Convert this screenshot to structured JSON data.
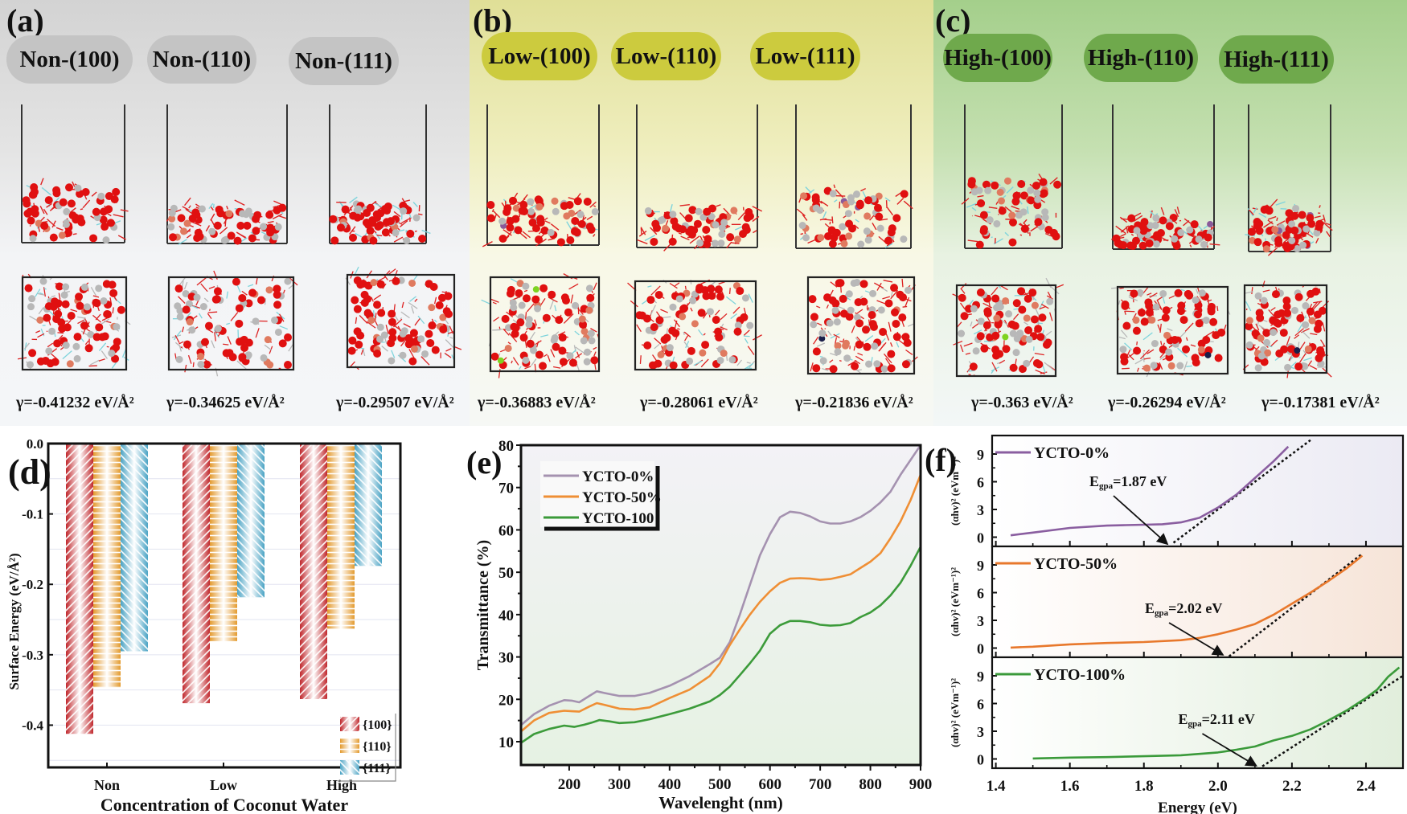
{
  "top_panels": [
    {
      "letter": "(a)",
      "group": "non",
      "facets": [
        {
          "label": "Non-(100)",
          "gamma": "γ=-0.41232 eV/Å²"
        },
        {
          "label": "Non-(110)",
          "gamma": "γ=-0.34625 eV/Å²"
        },
        {
          "label": "Non-(111)",
          "gamma": "γ=-0.29507 eV/Å²"
        }
      ]
    },
    {
      "letter": "(b)",
      "group": "low",
      "facets": [
        {
          "label": "Low-(100)",
          "gamma": "γ=-0.36883 eV/Å²"
        },
        {
          "label": "Low-(110)",
          "gamma": "γ=-0.28061 eV/Å²"
        },
        {
          "label": "Low-(111)",
          "gamma": "γ=-0.21836 eV/Å²"
        }
      ]
    },
    {
      "letter": "(c)",
      "group": "high",
      "facets": [
        {
          "label": "High-(100)",
          "gamma": "γ=-0.363 eV/Å²"
        },
        {
          "label": "High-(110)",
          "gamma": "γ=-0.26294 eV/Å²"
        },
        {
          "label": "High-(111)",
          "gamma": "γ=-0.17381 eV/Å²"
        }
      ]
    }
  ],
  "atom_colors": {
    "O": "#e01010",
    "Ti": "#b8b8b8",
    "Cu": "#e07a5f",
    "Y": "#7fd4dc",
    "dopant_purple": "#8a5a9a",
    "dopant_green": "#7ed321",
    "dopant_navy": "#1a1f4a"
  },
  "chart_data": [
    {
      "id": "d",
      "letter": "(d)",
      "type": "bar",
      "title": "",
      "xlabel": "Concentration of Coconut Water",
      "ylabel": "Surface Energy (eV/Å²)",
      "categories": [
        "Non",
        "Low",
        "High"
      ],
      "ylim": [
        -0.46,
        0.0
      ],
      "yticks": [
        0.0,
        -0.1,
        -0.2,
        -0.3,
        -0.4
      ],
      "ytick_labels": [
        "0.0",
        "-0.1",
        "-0.2",
        "-0.3",
        "-0.4"
      ],
      "grid": true,
      "legend": "bottom-right",
      "series": [
        {
          "name": "{100}",
          "color": "#c0282d",
          "values": [
            -0.41232,
            -0.36883,
            -0.363
          ]
        },
        {
          "name": "{110}",
          "color": "#e39a2e",
          "values": [
            -0.34625,
            -0.28061,
            -0.26294
          ]
        },
        {
          "name": "{111}",
          "color": "#4aa3c4",
          "values": [
            -0.29507,
            -0.21836,
            -0.17381
          ]
        }
      ]
    },
    {
      "id": "e",
      "letter": "(e)",
      "type": "line",
      "title": "",
      "xlabel": "Wavelenght (nm)",
      "ylabel": "Transmittance (%)",
      "xlim": [
        104,
        900
      ],
      "ylim": [
        4.5,
        80
      ],
      "xticks": [
        200,
        300,
        400,
        500,
        600,
        700,
        800,
        900
      ],
      "yticks": [
        10,
        20,
        30,
        40,
        50,
        60,
        70,
        80
      ],
      "legend": "top-left",
      "series": [
        {
          "name": "YCTO-0%",
          "color": "#a592b0",
          "x": [
            105,
            130,
            160,
            190,
            205,
            220,
            240,
            255,
            270,
            300,
            330,
            360,
            400,
            440,
            480,
            500,
            520,
            540,
            560,
            580,
            600,
            620,
            640,
            660,
            680,
            700,
            720,
            740,
            760,
            780,
            800,
            820,
            840,
            860,
            880,
            900
          ],
          "y": [
            14,
            16.5,
            18.5,
            19.8,
            19.7,
            19.3,
            20.8,
            21.9,
            21.5,
            20.8,
            20.8,
            21.5,
            23.2,
            25.5,
            28.3,
            29.8,
            33.5,
            40,
            47,
            54,
            59,
            63,
            64.3,
            64,
            63.2,
            62,
            61.5,
            61.5,
            62,
            63,
            64.5,
            66.5,
            69,
            73,
            76.5,
            80
          ]
        },
        {
          "name": "YCTO-50%",
          "color": "#ef8f35",
          "x": [
            105,
            130,
            160,
            190,
            205,
            220,
            240,
            255,
            270,
            300,
            330,
            360,
            400,
            440,
            480,
            500,
            520,
            540,
            560,
            580,
            600,
            620,
            640,
            660,
            680,
            700,
            720,
            740,
            760,
            780,
            800,
            820,
            840,
            860,
            880,
            900
          ],
          "y": [
            12.5,
            15,
            16.8,
            17.3,
            17.2,
            17.1,
            18.3,
            19.1,
            18.7,
            17.8,
            17.6,
            18.1,
            20.3,
            22.3,
            25.5,
            28.5,
            32.8,
            36.5,
            40,
            43,
            45.5,
            47.5,
            48.5,
            48.6,
            48.5,
            48.2,
            48.4,
            48.9,
            49.5,
            51,
            52.5,
            54.5,
            58,
            62,
            67,
            73
          ]
        },
        {
          "name": "YCTO-100",
          "color": "#3c9b3a",
          "x": [
            105,
            130,
            160,
            190,
            210,
            230,
            245,
            260,
            280,
            300,
            330,
            360,
            400,
            440,
            480,
            500,
            520,
            540,
            560,
            580,
            600,
            620,
            640,
            660,
            680,
            700,
            720,
            740,
            760,
            780,
            800,
            820,
            840,
            860,
            880,
            900
          ],
          "y": [
            9.8,
            11.8,
            13,
            13.8,
            13.5,
            14,
            14.5,
            15.1,
            14.8,
            14.4,
            14.6,
            15.3,
            16.5,
            17.8,
            19.5,
            21,
            23,
            25.7,
            28.5,
            31.5,
            35.5,
            37.5,
            38.5,
            38.5,
            38.2,
            37.6,
            37.4,
            37.5,
            38,
            39.4,
            40.5,
            42.2,
            44.5,
            47.5,
            51.5,
            56
          ]
        }
      ]
    },
    {
      "id": "f",
      "letter": "(f)",
      "type": "line",
      "title": "",
      "xlabel": "Energy (eV)",
      "ylabel": "(αhv)² (eVm⁻¹)²",
      "xlim": [
        1.39,
        2.5
      ],
      "xticks": [
        1.4,
        1.6,
        1.8,
        2.0,
        2.2,
        2.4
      ],
      "xtick_labels": [
        "1.4",
        "1.6",
        "1.8",
        "2.0",
        "2.2",
        "2.4"
      ],
      "subplots": [
        {
          "name": "YCTO-0%",
          "color": "#8a5ea0",
          "bg": "#ebeaf3",
          "ylim": [
            -1,
            11
          ],
          "yticks": [
            0,
            3,
            6,
            9
          ],
          "x": [
            1.44,
            1.5,
            1.6,
            1.7,
            1.75,
            1.8,
            1.85,
            1.9,
            1.95,
            2.0,
            2.05,
            2.1,
            2.15,
            2.19
          ],
          "y": [
            0.2,
            0.5,
            1.0,
            1.25,
            1.3,
            1.35,
            1.4,
            1.6,
            2.1,
            3.2,
            4.6,
            6.4,
            8.2,
            9.8
          ],
          "fit": {
            "x": [
              1.88,
              2.25
            ],
            "y": [
              -0.6,
              10.5
            ]
          },
          "annotation": {
            "text_main": "E",
            "text_sub": "gpa",
            "text_val": "=1.87 eV",
            "value_eV": 1.87
          }
        },
        {
          "name": "YCTO-50%",
          "color": "#e8782c",
          "bg": "#f6e4d8",
          "ylim": [
            -1,
            11
          ],
          "yticks": [
            0,
            3,
            6,
            9
          ],
          "x": [
            1.44,
            1.5,
            1.6,
            1.7,
            1.8,
            1.9,
            1.95,
            2.0,
            2.05,
            2.1,
            2.15,
            2.2,
            2.25,
            2.3,
            2.35,
            2.39
          ],
          "y": [
            0.05,
            0.15,
            0.4,
            0.55,
            0.65,
            0.85,
            1.1,
            1.5,
            2.0,
            2.6,
            3.6,
            4.8,
            6.0,
            7.3,
            8.7,
            10.0
          ],
          "fit": {
            "x": [
              2.03,
              2.39
            ],
            "y": [
              -0.9,
              10.2
            ]
          },
          "annotation": {
            "text_main": "E",
            "text_sub": "gpa",
            "text_val": "=2.02 eV",
            "value_eV": 2.02
          }
        },
        {
          "name": "YCTO-100%",
          "color": "#3a9a3a",
          "bg": "#e1eedc",
          "ylim": [
            -1,
            11
          ],
          "yticks": [
            0,
            3,
            6,
            9
          ],
          "x": [
            1.5,
            1.6,
            1.7,
            1.8,
            1.9,
            2.0,
            2.05,
            2.1,
            2.15,
            2.2,
            2.25,
            2.3,
            2.35,
            2.4,
            2.43,
            2.46,
            2.49
          ],
          "y": [
            0.05,
            0.15,
            0.2,
            0.3,
            0.4,
            0.7,
            1.0,
            1.35,
            2.0,
            2.5,
            3.2,
            4.2,
            5.3,
            6.6,
            7.5,
            8.9,
            9.9
          ],
          "fit": {
            "x": [
              2.12,
              2.5
            ],
            "y": [
              -0.8,
              9.0
            ]
          },
          "annotation": {
            "text_main": "E",
            "text_sub": "gpa",
            "text_val": "=2.11 eV",
            "value_eV": 2.11
          }
        }
      ]
    }
  ]
}
